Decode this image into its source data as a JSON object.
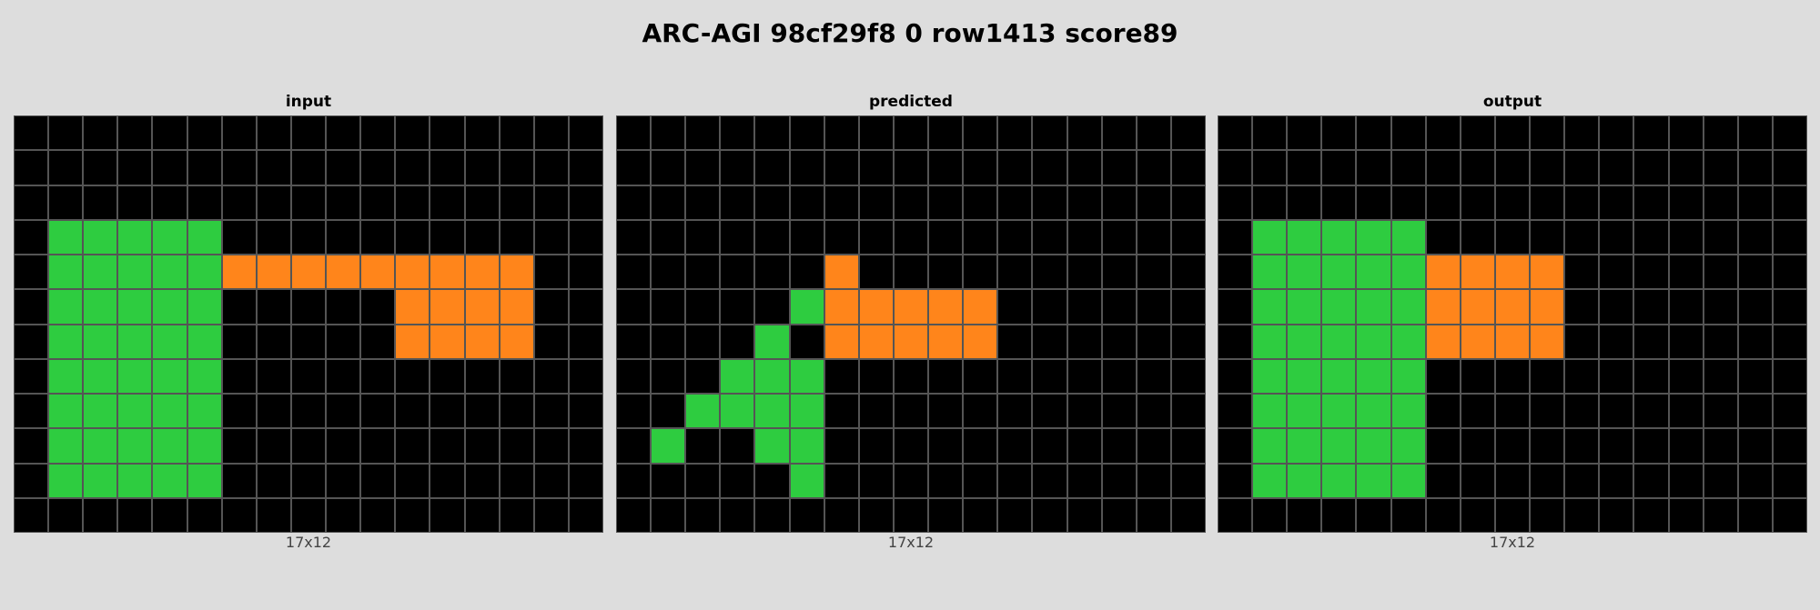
{
  "title": "ARC-AGI 98cf29f8 0 row1413 score89",
  "colors": {
    "0": "#000000",
    "3": "#2ecc40",
    "7": "#ff851b",
    "grid_line": "#555555",
    "background": "#dddddd"
  },
  "panels": [
    {
      "label": "input",
      "size_label": "17x12",
      "grid": [
        [
          0,
          0,
          0,
          0,
          0,
          0,
          0,
          0,
          0,
          0,
          0,
          0,
          0,
          0,
          0,
          0,
          0
        ],
        [
          0,
          0,
          0,
          0,
          0,
          0,
          0,
          0,
          0,
          0,
          0,
          0,
          0,
          0,
          0,
          0,
          0
        ],
        [
          0,
          0,
          0,
          0,
          0,
          0,
          0,
          0,
          0,
          0,
          0,
          0,
          0,
          0,
          0,
          0,
          0
        ],
        [
          0,
          3,
          3,
          3,
          3,
          3,
          0,
          0,
          0,
          0,
          0,
          0,
          0,
          0,
          0,
          0,
          0
        ],
        [
          0,
          3,
          3,
          3,
          3,
          3,
          7,
          7,
          7,
          7,
          7,
          7,
          7,
          7,
          7,
          0,
          0
        ],
        [
          0,
          3,
          3,
          3,
          3,
          3,
          0,
          0,
          0,
          0,
          0,
          7,
          7,
          7,
          7,
          0,
          0
        ],
        [
          0,
          3,
          3,
          3,
          3,
          3,
          0,
          0,
          0,
          0,
          0,
          7,
          7,
          7,
          7,
          0,
          0
        ],
        [
          0,
          3,
          3,
          3,
          3,
          3,
          0,
          0,
          0,
          0,
          0,
          0,
          0,
          0,
          0,
          0,
          0
        ],
        [
          0,
          3,
          3,
          3,
          3,
          3,
          0,
          0,
          0,
          0,
          0,
          0,
          0,
          0,
          0,
          0,
          0
        ],
        [
          0,
          3,
          3,
          3,
          3,
          3,
          0,
          0,
          0,
          0,
          0,
          0,
          0,
          0,
          0,
          0,
          0
        ],
        [
          0,
          3,
          3,
          3,
          3,
          3,
          0,
          0,
          0,
          0,
          0,
          0,
          0,
          0,
          0,
          0,
          0
        ],
        [
          0,
          0,
          0,
          0,
          0,
          0,
          0,
          0,
          0,
          0,
          0,
          0,
          0,
          0,
          0,
          0,
          0
        ]
      ]
    },
    {
      "label": "predicted",
      "size_label": "17x12",
      "grid": [
        [
          0,
          0,
          0,
          0,
          0,
          0,
          0,
          0,
          0,
          0,
          0,
          0,
          0,
          0,
          0,
          0,
          0
        ],
        [
          0,
          0,
          0,
          0,
          0,
          0,
          0,
          0,
          0,
          0,
          0,
          0,
          0,
          0,
          0,
          0,
          0
        ],
        [
          0,
          0,
          0,
          0,
          0,
          0,
          0,
          0,
          0,
          0,
          0,
          0,
          0,
          0,
          0,
          0,
          0
        ],
        [
          0,
          0,
          0,
          0,
          0,
          0,
          0,
          0,
          0,
          0,
          0,
          0,
          0,
          0,
          0,
          0,
          0
        ],
        [
          0,
          0,
          0,
          0,
          0,
          0,
          7,
          0,
          0,
          0,
          0,
          0,
          0,
          0,
          0,
          0,
          0
        ],
        [
          0,
          0,
          0,
          0,
          0,
          3,
          7,
          7,
          7,
          7,
          7,
          0,
          0,
          0,
          0,
          0,
          0
        ],
        [
          0,
          0,
          0,
          0,
          3,
          0,
          7,
          7,
          7,
          7,
          7,
          0,
          0,
          0,
          0,
          0,
          0
        ],
        [
          0,
          0,
          0,
          3,
          3,
          3,
          0,
          0,
          0,
          0,
          0,
          0,
          0,
          0,
          0,
          0,
          0
        ],
        [
          0,
          0,
          3,
          3,
          3,
          3,
          0,
          0,
          0,
          0,
          0,
          0,
          0,
          0,
          0,
          0,
          0
        ],
        [
          0,
          3,
          0,
          0,
          3,
          3,
          0,
          0,
          0,
          0,
          0,
          0,
          0,
          0,
          0,
          0,
          0
        ],
        [
          0,
          0,
          0,
          0,
          0,
          3,
          0,
          0,
          0,
          0,
          0,
          0,
          0,
          0,
          0,
          0,
          0
        ],
        [
          0,
          0,
          0,
          0,
          0,
          0,
          0,
          0,
          0,
          0,
          0,
          0,
          0,
          0,
          0,
          0,
          0
        ]
      ]
    },
    {
      "label": "output",
      "size_label": "17x12",
      "grid": [
        [
          0,
          0,
          0,
          0,
          0,
          0,
          0,
          0,
          0,
          0,
          0,
          0,
          0,
          0,
          0,
          0,
          0
        ],
        [
          0,
          0,
          0,
          0,
          0,
          0,
          0,
          0,
          0,
          0,
          0,
          0,
          0,
          0,
          0,
          0,
          0
        ],
        [
          0,
          0,
          0,
          0,
          0,
          0,
          0,
          0,
          0,
          0,
          0,
          0,
          0,
          0,
          0,
          0,
          0
        ],
        [
          0,
          3,
          3,
          3,
          3,
          3,
          0,
          0,
          0,
          0,
          0,
          0,
          0,
          0,
          0,
          0,
          0
        ],
        [
          0,
          3,
          3,
          3,
          3,
          3,
          7,
          7,
          7,
          7,
          0,
          0,
          0,
          0,
          0,
          0,
          0
        ],
        [
          0,
          3,
          3,
          3,
          3,
          3,
          7,
          7,
          7,
          7,
          0,
          0,
          0,
          0,
          0,
          0,
          0
        ],
        [
          0,
          3,
          3,
          3,
          3,
          3,
          7,
          7,
          7,
          7,
          0,
          0,
          0,
          0,
          0,
          0,
          0
        ],
        [
          0,
          3,
          3,
          3,
          3,
          3,
          0,
          0,
          0,
          0,
          0,
          0,
          0,
          0,
          0,
          0,
          0
        ],
        [
          0,
          3,
          3,
          3,
          3,
          3,
          0,
          0,
          0,
          0,
          0,
          0,
          0,
          0,
          0,
          0,
          0
        ],
        [
          0,
          3,
          3,
          3,
          3,
          3,
          0,
          0,
          0,
          0,
          0,
          0,
          0,
          0,
          0,
          0,
          0
        ],
        [
          0,
          3,
          3,
          3,
          3,
          3,
          0,
          0,
          0,
          0,
          0,
          0,
          0,
          0,
          0,
          0,
          0
        ],
        [
          0,
          0,
          0,
          0,
          0,
          0,
          0,
          0,
          0,
          0,
          0,
          0,
          0,
          0,
          0,
          0,
          0
        ]
      ]
    }
  ]
}
